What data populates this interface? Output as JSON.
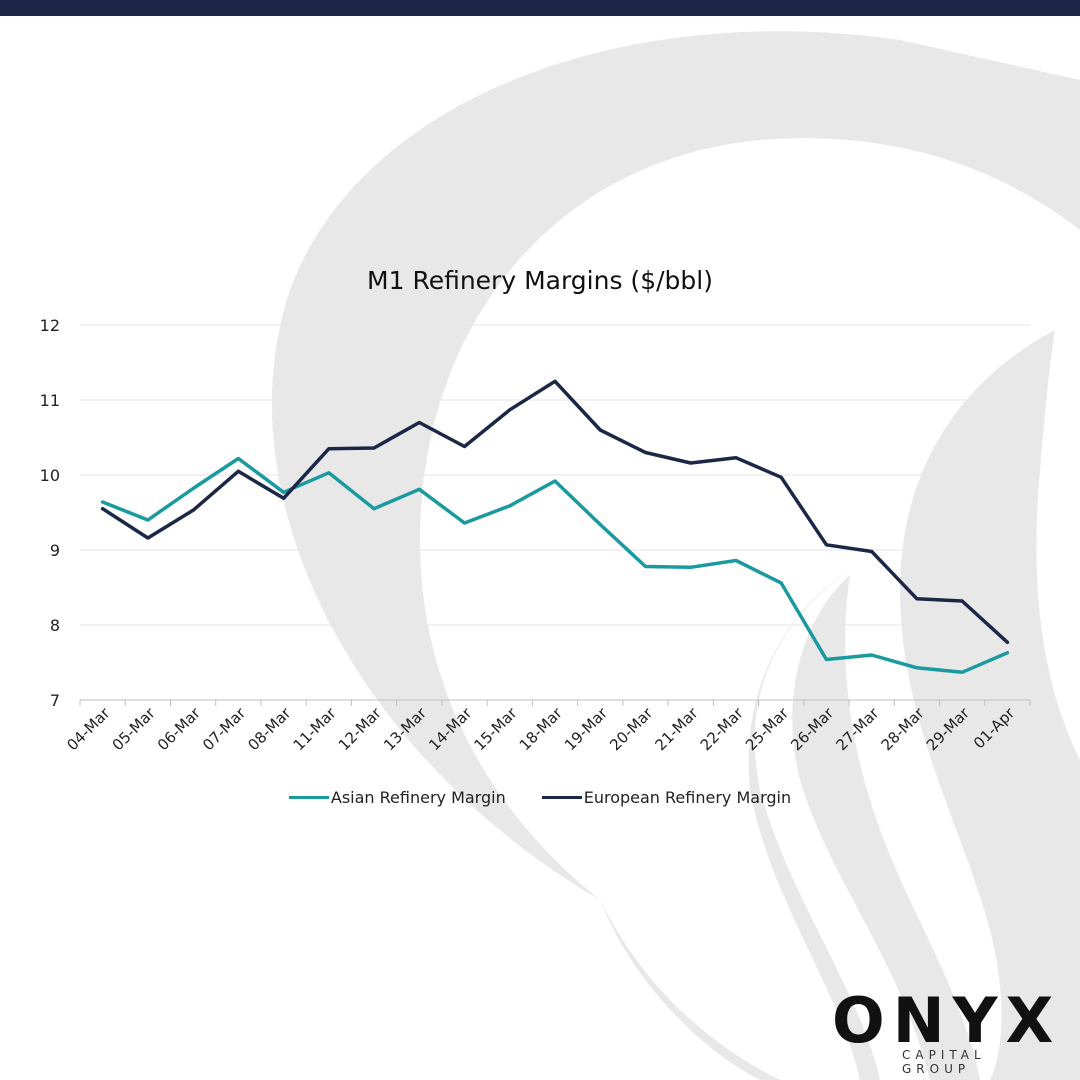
{
  "colors": {
    "asian": "#1a9aa0",
    "european": "#1c2747",
    "grid": "#e6e6e6",
    "watermark": "#e8e8e8",
    "top_bar": "#1c2747"
  },
  "chart_data": {
    "type": "line",
    "title": "M1 Refinery Margins ($/bbl)",
    "xlabel": "",
    "ylabel": "",
    "ylim": [
      7,
      12
    ],
    "yticks": [
      "12",
      "11",
      "10",
      "9",
      "8",
      "7"
    ],
    "grid": true,
    "legend_position": "bottom",
    "categories": [
      "04-Mar",
      "05-Mar",
      "06-Mar",
      "07-Mar",
      "08-Mar",
      "11-Mar",
      "12-Mar",
      "13-Mar",
      "14-Mar",
      "15-Mar",
      "18-Mar",
      "19-Mar",
      "20-Mar",
      "21-Mar",
      "22-Mar",
      "25-Mar",
      "26-Mar",
      "27-Mar",
      "28-Mar",
      "29-Mar",
      "01-Apr"
    ],
    "series": [
      {
        "name": "Asian Refinery Margin",
        "color": "#1a9aa0",
        "values": [
          9.64,
          9.4,
          9.82,
          10.22,
          9.77,
          10.03,
          9.55,
          9.81,
          9.36,
          9.59,
          9.92,
          9.34,
          8.78,
          8.77,
          8.86,
          8.56,
          7.54,
          7.6,
          7.43,
          7.37,
          7.63
        ]
      },
      {
        "name": "European Refinery Margin",
        "color": "#1c2747",
        "values": [
          9.55,
          9.16,
          9.53,
          10.05,
          9.69,
          10.35,
          10.36,
          10.7,
          10.38,
          10.87,
          11.25,
          10.6,
          10.3,
          10.16,
          10.23,
          9.97,
          9.07,
          8.98,
          8.35,
          8.32,
          7.77
        ]
      }
    ]
  },
  "logo": {
    "word": "ONYX",
    "subtitle": "CAPITAL GROUP"
  }
}
